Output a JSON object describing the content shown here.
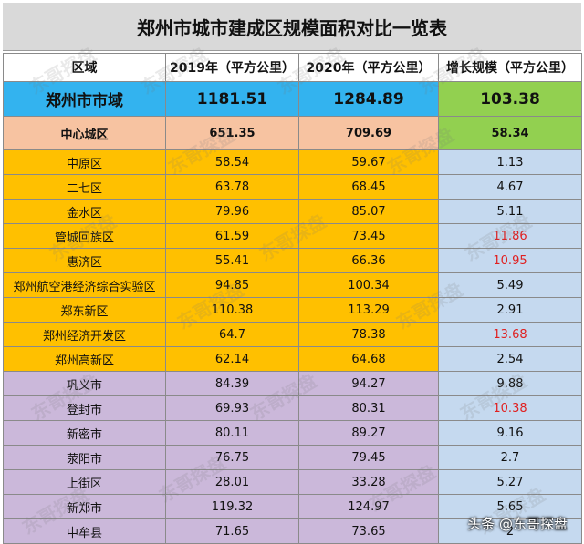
{
  "title": "郑州市城市建成区规模面积对比一览表",
  "headers": [
    "区域",
    "2019年（平方公里）",
    "2020年（平方公里）",
    "增长规模（平方公里）"
  ],
  "city_row": {
    "name": "郑州市市域",
    "y2019": "1181.51",
    "y2020": "1284.89",
    "growth": "103.38"
  },
  "center_row": {
    "name": "中心城区",
    "y2019": "651.35",
    "y2020": "709.69",
    "growth": "58.34"
  },
  "districts": [
    {
      "name": "中原区",
      "y2019": "58.54",
      "y2020": "59.67",
      "growth": "1.13",
      "highlight": false
    },
    {
      "name": "二七区",
      "y2019": "63.78",
      "y2020": "68.45",
      "growth": "4.67",
      "highlight": false
    },
    {
      "name": "金水区",
      "y2019": "79.96",
      "y2020": "85.07",
      "growth": "5.11",
      "highlight": false
    },
    {
      "name": "管城回族区",
      "y2019": "61.59",
      "y2020": "73.45",
      "growth": "11.86",
      "highlight": true
    },
    {
      "name": "惠济区",
      "y2019": "55.41",
      "y2020": "66.36",
      "growth": "10.95",
      "highlight": true
    },
    {
      "name": "郑州航空港经济综合实验区",
      "y2019": "94.85",
      "y2020": "100.34",
      "growth": "5.49",
      "highlight": false
    },
    {
      "name": "郑东新区",
      "y2019": "110.38",
      "y2020": "113.29",
      "growth": "2.91",
      "highlight": false
    },
    {
      "name": "郑州经济开发区",
      "y2019": "64.7",
      "y2020": "78.38",
      "growth": "13.68",
      "highlight": true
    },
    {
      "name": "郑州高新区",
      "y2019": "62.14",
      "y2020": "64.68",
      "growth": "2.54",
      "highlight": false
    }
  ],
  "counties": [
    {
      "name": "巩义市",
      "y2019": "84.39",
      "y2020": "94.27",
      "growth": "9.88",
      "highlight": false
    },
    {
      "name": "登封市",
      "y2019": "69.93",
      "y2020": "80.31",
      "growth": "10.38",
      "highlight": true
    },
    {
      "name": "新密市",
      "y2019": "80.11",
      "y2020": "89.27",
      "growth": "9.16",
      "highlight": false
    },
    {
      "name": "荥阳市",
      "y2019": "76.75",
      "y2020": "79.45",
      "growth": "2.7",
      "highlight": false
    },
    {
      "name": "上街区",
      "y2019": "28.01",
      "y2020": "33.28",
      "growth": "5.27",
      "highlight": false
    },
    {
      "name": "新郑市",
      "y2019": "119.32",
      "y2020": "124.97",
      "growth": "5.65",
      "highlight": false
    },
    {
      "name": "中牟县",
      "y2019": "71.65",
      "y2020": "73.65",
      "growth": "2",
      "highlight": false
    }
  ],
  "watermark": "东哥探盘",
  "credit": "头条 @东哥探盘",
  "colors": {
    "title_bg": "#d9d9d9",
    "city_bg": "#33b3ef",
    "growth_top_bg": "#92d050",
    "center_bg": "#f7c3a1",
    "district_bg": "#ffc000",
    "county_bg": "#cbb8da",
    "growth_bg": "#c5d9ef",
    "highlight_text": "#e02020"
  }
}
